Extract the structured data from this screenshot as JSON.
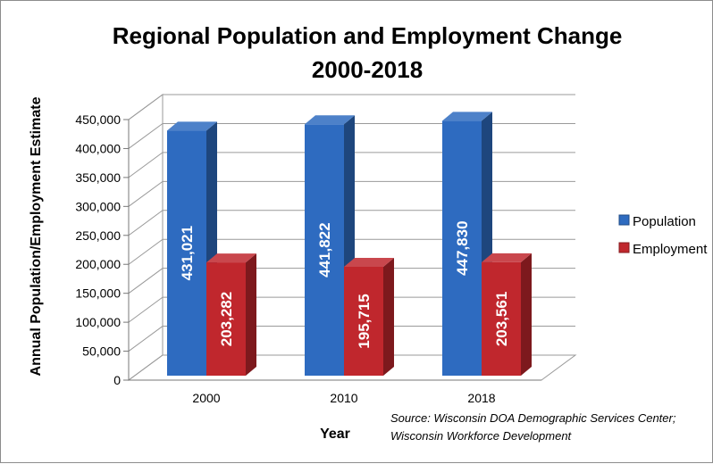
{
  "chart_data": {
    "type": "bar",
    "title": [
      "Regional Population and Employment Change",
      "2000-2018"
    ],
    "categories": [
      "2000",
      "2010",
      "2018"
    ],
    "series": [
      {
        "name": "Population",
        "values": [
          431021,
          441822,
          447830
        ],
        "labels": [
          "431,021",
          "441,822",
          "447,830"
        ],
        "color": "#2E6BC0"
      },
      {
        "name": "Employment",
        "values": [
          203282,
          195715,
          203561
        ],
        "labels": [
          "203,282",
          "195,715",
          "203,561"
        ],
        "color": "#C0272D"
      }
    ],
    "xlabel": "Year",
    "ylabel": "Annual Population/Employment  Estimate",
    "ylim": [
      0,
      450000
    ],
    "ytick_values": [
      0,
      50000,
      100000,
      150000,
      200000,
      250000,
      300000,
      350000,
      400000,
      450000
    ],
    "ytick_labels": [
      "0",
      "50,000",
      "100,000",
      "150,000",
      "200,000",
      "250,000",
      "300,000",
      "350,000",
      "400,000",
      "450,000"
    ],
    "grid": true,
    "legend": "right",
    "style": "3d-column",
    "source_lines": [
      "Source: Wisconsin DOA Demographic Services Center;",
      "Wisconsin Workforce Development"
    ]
  }
}
